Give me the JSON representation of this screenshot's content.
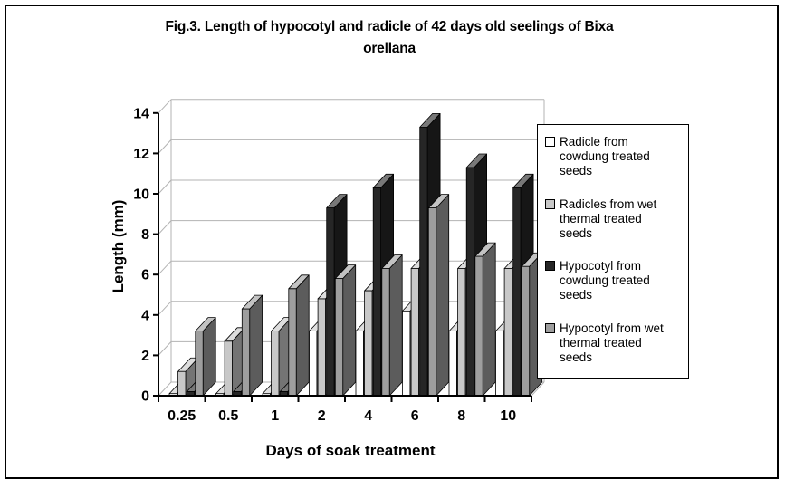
{
  "figure": {
    "title_line1": "Fig.3. Length of hypocotyl and radicle of 42 days old seelings of Bixa",
    "title_line2": "orellana"
  },
  "chart_data": {
    "type": "bar",
    "effect": "3d-clustered",
    "title": "Fig.3. Length of hypocotyl and radicle of 42 days old seelings of Bixa orellana",
    "xlabel": "Days of soak treatment",
    "ylabel": "Length (mm)",
    "ylim": [
      0,
      14
    ],
    "ytick_step": 2,
    "grid": true,
    "legend_position": "right",
    "categories": [
      "0.25",
      "0.5",
      "1",
      "2",
      "4",
      "6",
      "8",
      "10"
    ],
    "series": [
      {
        "name": "Radicle from cowdung treated seeds",
        "color": "#ffffff",
        "values": [
          0.1,
          0.1,
          0.1,
          3.2,
          3.2,
          4.2,
          3.2,
          3.2
        ]
      },
      {
        "name": "Radicles from wet thermal treated seeds",
        "color": "#c8c8c8",
        "values": [
          1.2,
          2.7,
          3.2,
          4.8,
          5.2,
          6.3,
          6.3,
          6.3
        ]
      },
      {
        "name": "Hypocotyl from cowdung treated seeds",
        "color": "#262626",
        "values": [
          0.2,
          0.2,
          0.2,
          9.3,
          10.3,
          13.3,
          11.3,
          10.3
        ]
      },
      {
        "name": "Hypocotyl from wet thermal treated seeds",
        "color": "#9e9e9e",
        "values": [
          3.2,
          4.3,
          5.3,
          5.8,
          6.3,
          9.3,
          6.9,
          6.4
        ]
      }
    ]
  },
  "axis_colors": {
    "axis": "#000000",
    "gridline": "#b3b3b3",
    "tick_label": "#000000"
  }
}
